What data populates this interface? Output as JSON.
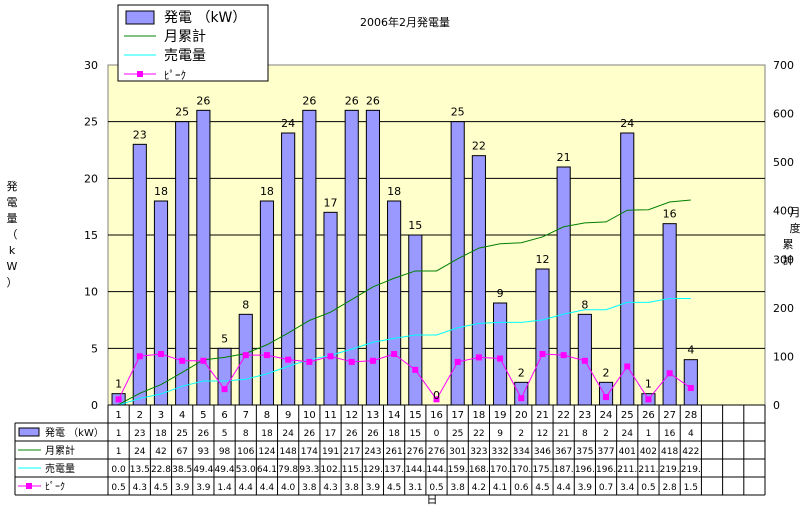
{
  "chart_data": {
    "type": "bar",
    "title": "2006年2月発電量",
    "xlabel": "日",
    "ylabel_left": "発電量（kW）",
    "ylabel_right": "月度累計",
    "ylim_left": [
      0,
      30
    ],
    "yticks_left": [
      "0",
      "5",
      "10",
      "15",
      "20",
      "25",
      "30"
    ],
    "ylim_right": [
      0,
      700
    ],
    "yticks_right": [
      "0",
      "100",
      "200",
      "300",
      "400",
      "500",
      "600",
      "700"
    ],
    "grid": true,
    "legend_position": "top-left",
    "categories": [
      "1",
      "2",
      "3",
      "4",
      "5",
      "6",
      "7",
      "8",
      "9",
      "10",
      "11",
      "12",
      "13",
      "14",
      "15",
      "16",
      "17",
      "18",
      "19",
      "20",
      "21",
      "22",
      "23",
      "24",
      "25",
      "26",
      "27",
      "28"
    ],
    "series": [
      {
        "name": "発電 （kW）",
        "type": "bar",
        "axis": "left",
        "color": "#9999ff",
        "values": [
          1,
          23,
          18,
          25,
          26,
          5,
          8,
          18,
          24,
          26,
          17,
          26,
          26,
          18,
          15,
          0,
          25,
          22,
          9,
          2,
          12,
          21,
          8,
          2,
          24,
          1,
          16,
          4
        ],
        "table_labels": [
          "1",
          "23",
          "18",
          "25",
          "26",
          "5",
          "8",
          "18",
          "24",
          "26",
          "17",
          "26",
          "26",
          "18",
          "15",
          "0",
          "25",
          "22",
          "9",
          "2",
          "12",
          "21",
          "8",
          "2",
          "24",
          "1",
          "16",
          "4"
        ]
      },
      {
        "name": "月累計",
        "type": "line",
        "axis": "right",
        "color": "#008000",
        "values": [
          1,
          24,
          42,
          67,
          93,
          98,
          106,
          124,
          148,
          174,
          191,
          217,
          243,
          261,
          276,
          276,
          301,
          323,
          332,
          334,
          346,
          367,
          375,
          377,
          401,
          402,
          418,
          422
        ],
        "table_labels": [
          "1",
          "24",
          "42",
          "67",
          "93",
          "98",
          "106",
          "124",
          "148",
          "174",
          "191",
          "217",
          "243",
          "261",
          "276",
          "276",
          "301",
          "323",
          "332",
          "334",
          "346",
          "367",
          "375",
          "377",
          "401",
          "402",
          "418",
          "422"
        ]
      },
      {
        "name": "売電量",
        "type": "line",
        "axis": "right",
        "color": "#00ffff",
        "values": [
          0.0,
          13.5,
          22.8,
          38.5,
          49.4,
          49.4,
          53.0,
          64.1,
          79.8,
          93.3,
          102.1,
          115.1,
          129.1,
          137.1,
          144.1,
          144.1,
          159.1,
          168.1,
          170.1,
          170.1,
          175.1,
          187.1,
          196.1,
          196.1,
          211.2,
          211.2,
          219.2,
          219.2
        ],
        "table_labels": [
          "0.0",
          "13.5",
          "22.8",
          "38.5",
          "49.4",
          "49.4",
          "53.0",
          "64.1",
          "79.8",
          "93.3",
          "102.",
          "115.",
          "129.",
          "137.",
          "144.",
          "144.",
          "159.",
          "168.",
          "170.",
          "170.",
          "175.",
          "187.",
          "196.",
          "196.",
          "211.",
          "211.",
          "219.",
          "219."
        ]
      },
      {
        "name": "ﾋﾟｰｸ",
        "type": "line",
        "axis": "left",
        "color": "#ff00ff",
        "marker": "square",
        "values": [
          0.5,
          4.3,
          4.5,
          3.9,
          3.9,
          1.4,
          4.4,
          4.4,
          4.0,
          3.8,
          4.3,
          3.8,
          3.9,
          4.5,
          3.1,
          0.5,
          3.8,
          4.2,
          4.1,
          0.6,
          4.5,
          4.4,
          3.9,
          0.7,
          3.4,
          0.5,
          2.8,
          1.5
        ],
        "table_labels": [
          "0.5",
          "4.3",
          "4.5",
          "3.9",
          "3.9",
          "1.4",
          "4.4",
          "4.4",
          "4.0",
          "3.8",
          "4.3",
          "3.8",
          "3.9",
          "4.5",
          "3.1",
          "0.5",
          "3.8",
          "4.2",
          "4.1",
          "0.6",
          "4.5",
          "4.4",
          "3.9",
          "0.7",
          "3.4",
          "0.5",
          "2.8",
          "1.5"
        ]
      }
    ]
  }
}
